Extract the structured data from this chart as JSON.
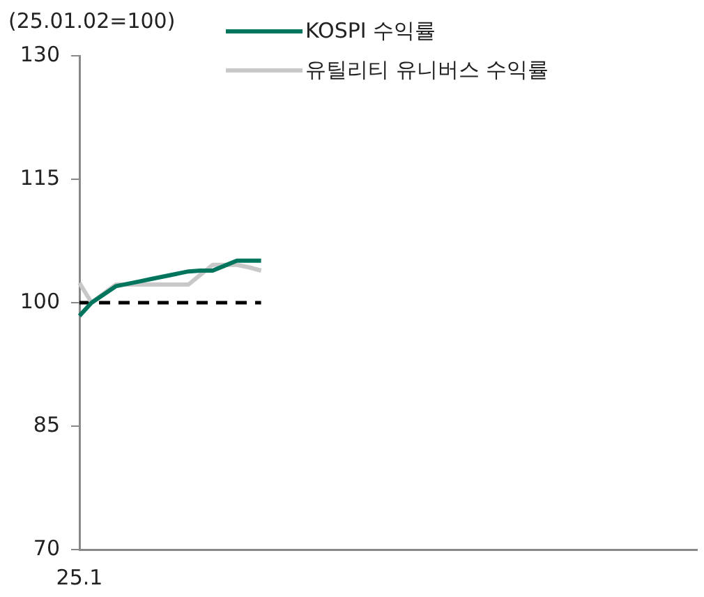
{
  "chart_data": {
    "type": "line",
    "ylabel": "(25.01.02=100)",
    "categories": [
      "25.1",
      null,
      null,
      null,
      null,
      null,
      null,
      null,
      null,
      null,
      null,
      null,
      null,
      null,
      null,
      null,
      null,
      null,
      null,
      null,
      null,
      null,
      null,
      null,
      null,
      null,
      null,
      null,
      null,
      null,
      null,
      null,
      null,
      null,
      null,
      null,
      null,
      null,
      null,
      null,
      null,
      null,
      null,
      null,
      null,
      null,
      null,
      null,
      null,
      null,
      null,
      null
    ],
    "series": [
      {
        "name": "KOSPI 수익률",
        "color": "#00755e",
        "values": [
          98.4,
          100,
          101,
          102,
          102.3,
          102.6,
          102.9,
          103.2,
          103.5,
          103.8,
          103.9,
          103.9,
          104.5,
          105.1,
          105.1,
          105.1,
          null,
          null,
          null,
          null,
          null,
          null,
          null,
          null,
          null,
          null,
          null,
          null,
          null,
          null,
          null,
          null,
          null,
          null,
          null,
          null,
          null,
          null,
          null,
          null,
          null,
          null,
          null,
          null,
          null,
          null,
          null,
          null,
          null,
          null,
          null,
          null
        ]
      },
      {
        "name": "유틸리티 유니버스 수익률",
        "color": "#c8c8c8",
        "values": [
          102.4,
          100,
          101.1,
          102.2,
          102.2,
          102.2,
          102.2,
          102.2,
          102.2,
          102.2,
          103.4,
          104.6,
          104.6,
          104.6,
          104.3,
          103.9,
          null,
          null,
          null,
          null,
          null,
          null,
          null,
          null,
          null,
          null,
          null,
          null,
          null,
          null,
          null,
          null,
          null,
          null,
          null,
          null,
          null,
          null,
          null,
          null,
          null,
          null,
          null,
          null,
          null,
          null,
          null,
          null,
          null,
          null,
          null,
          null
        ]
      },
      {
        "color": "#000000",
        "line_style": "dashed",
        "values": [
          100,
          100,
          100,
          100,
          100,
          100,
          100,
          100,
          100,
          100,
          100,
          100,
          100,
          100,
          100,
          100,
          null,
          null,
          null,
          null,
          null,
          null,
          null,
          null,
          null,
          null,
          null,
          null,
          null,
          null,
          null,
          null,
          null,
          null,
          null,
          null,
          null,
          null,
          null,
          null,
          null,
          null,
          null,
          null,
          null,
          null,
          null,
          null,
          null,
          null,
          null,
          null
        ]
      }
    ],
    "ylim": [
      70,
      130
    ],
    "yticks": [
      70,
      85,
      100,
      115,
      130
    ],
    "grid": false,
    "legend": "top"
  }
}
